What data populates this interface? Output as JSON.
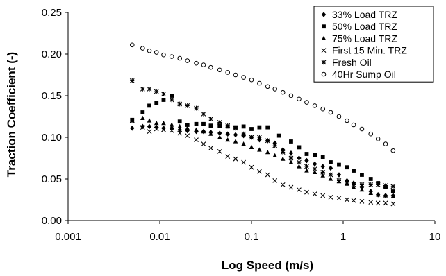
{
  "chart_data": {
    "type": "scatter",
    "title": "",
    "xlabel": "Log Speed (m/s)",
    "ylabel": "Traction Coefficient (-)",
    "x_scale": "log",
    "xlim": [
      0.001,
      10
    ],
    "ylim": [
      0,
      0.25
    ],
    "x_ticks": [
      "0.001",
      "0.01",
      "0.1",
      "1",
      "10"
    ],
    "y_ticks": [
      "0.00",
      "0.05",
      "0.10",
      "0.15",
      "0.20",
      "0.25"
    ],
    "grid": false,
    "legend_position": "top-right",
    "series": [
      {
        "name": "33% Load TRZ",
        "marker": "diamond",
        "x": [
          0.005,
          0.0065,
          0.0077,
          0.0092,
          0.011,
          0.0135,
          0.0165,
          0.02,
          0.025,
          0.03,
          0.036,
          0.045,
          0.055,
          0.067,
          0.082,
          0.1,
          0.122,
          0.15,
          0.18,
          0.22,
          0.27,
          0.33,
          0.4,
          0.49,
          0.6,
          0.73,
          0.9,
          1.1,
          1.3,
          1.6,
          2.0,
          2.4,
          2.9,
          3.5
        ],
        "y": [
          0.111,
          0.113,
          0.113,
          0.112,
          0.111,
          0.111,
          0.109,
          0.108,
          0.107,
          0.107,
          0.106,
          0.105,
          0.104,
          0.103,
          0.102,
          0.1,
          0.097,
          0.096,
          0.093,
          0.085,
          0.081,
          0.075,
          0.072,
          0.068,
          0.065,
          0.063,
          0.055,
          0.048,
          0.045,
          0.04,
          0.035,
          0.031,
          0.03,
          0.03
        ]
      },
      {
        "name": "50% Load TRZ",
        "marker": "square",
        "x": [
          0.005,
          0.0065,
          0.0077,
          0.0092,
          0.011,
          0.0135,
          0.0165,
          0.02,
          0.025,
          0.03,
          0.036,
          0.045,
          0.055,
          0.067,
          0.082,
          0.1,
          0.122,
          0.15,
          0.2,
          0.27,
          0.33,
          0.4,
          0.49,
          0.6,
          0.73,
          0.9,
          1.1,
          1.3,
          1.6,
          2.0,
          2.4,
          2.9,
          3.5
        ],
        "y": [
          0.121,
          0.13,
          0.138,
          0.141,
          0.145,
          0.15,
          0.119,
          0.115,
          0.116,
          0.116,
          0.114,
          0.114,
          0.113,
          0.112,
          0.113,
          0.11,
          0.112,
          0.112,
          0.102,
          0.095,
          0.088,
          0.08,
          0.079,
          0.076,
          0.07,
          0.067,
          0.064,
          0.06,
          0.055,
          0.05,
          0.045,
          0.04,
          0.035
        ]
      },
      {
        "name": "75% Load TRZ",
        "marker": "triangle",
        "x": [
          0.005,
          0.0065,
          0.0077,
          0.0092,
          0.011,
          0.0135,
          0.0165,
          0.02,
          0.025,
          0.03,
          0.036,
          0.045,
          0.055,
          0.067,
          0.082,
          0.1,
          0.122,
          0.15,
          0.18,
          0.22,
          0.27,
          0.33,
          0.4,
          0.49,
          0.6,
          0.73,
          0.9,
          1.1,
          1.3,
          1.6,
          2.0,
          2.4,
          2.9,
          3.5
        ],
        "y": [
          0.12,
          0.123,
          0.12,
          0.117,
          0.117,
          0.115,
          0.113,
          0.111,
          0.109,
          0.107,
          0.104,
          0.1,
          0.097,
          0.095,
          0.092,
          0.088,
          0.085,
          0.082,
          0.078,
          0.074,
          0.07,
          0.065,
          0.06,
          0.058,
          0.054,
          0.05,
          0.047,
          0.044,
          0.04,
          0.037,
          0.033,
          0.031,
          0.03,
          0.029
        ]
      },
      {
        "name": "First 15 Min. TRZ",
        "marker": "x",
        "x": [
          0.005,
          0.0065,
          0.0077,
          0.0092,
          0.011,
          0.0135,
          0.0165,
          0.02,
          0.025,
          0.03,
          0.036,
          0.045,
          0.055,
          0.067,
          0.082,
          0.1,
          0.122,
          0.15,
          0.18,
          0.22,
          0.27,
          0.33,
          0.4,
          0.49,
          0.6,
          0.73,
          0.9,
          1.1,
          1.3,
          1.6,
          2.0,
          2.4,
          2.9,
          3.5
        ],
        "y": [
          0.12,
          0.112,
          0.107,
          0.11,
          0.109,
          0.108,
          0.105,
          0.102,
          0.097,
          0.092,
          0.087,
          0.083,
          0.077,
          0.074,
          0.07,
          0.064,
          0.059,
          0.055,
          0.048,
          0.043,
          0.04,
          0.037,
          0.034,
          0.032,
          0.03,
          0.028,
          0.027,
          0.025,
          0.024,
          0.023,
          0.022,
          0.021,
          0.021,
          0.02
        ]
      },
      {
        "name": "Fresh Oil",
        "marker": "asterisk",
        "x": [
          0.005,
          0.0065,
          0.0077,
          0.0092,
          0.011,
          0.0135,
          0.0165,
          0.02,
          0.025,
          0.03,
          0.036,
          0.045,
          0.055,
          0.067,
          0.082,
          0.1,
          0.122,
          0.15,
          0.18,
          0.22,
          0.27,
          0.33,
          0.4,
          0.49,
          0.6,
          0.73,
          0.9,
          1.1,
          1.3,
          1.6,
          2.0,
          2.4,
          2.9,
          3.5
        ],
        "y": [
          0.168,
          0.158,
          0.158,
          0.155,
          0.152,
          0.145,
          0.14,
          0.138,
          0.135,
          0.128,
          0.122,
          0.118,
          0.114,
          0.111,
          0.104,
          0.1,
          0.1,
          0.096,
          0.09,
          0.082,
          0.075,
          0.07,
          0.065,
          0.062,
          0.058,
          0.055,
          0.048,
          0.045,
          0.043,
          0.043,
          0.043,
          0.043,
          0.042,
          0.041
        ]
      },
      {
        "name": "40Hr Sump Oil",
        "marker": "circle",
        "x": [
          0.005,
          0.0065,
          0.0077,
          0.0092,
          0.011,
          0.0135,
          0.0165,
          0.02,
          0.025,
          0.03,
          0.036,
          0.045,
          0.055,
          0.067,
          0.082,
          0.1,
          0.122,
          0.15,
          0.18,
          0.22,
          0.27,
          0.33,
          0.4,
          0.49,
          0.6,
          0.73,
          0.9,
          1.1,
          1.3,
          1.6,
          2.0,
          2.4,
          2.9,
          3.5
        ],
        "y": [
          0.211,
          0.207,
          0.204,
          0.202,
          0.199,
          0.197,
          0.195,
          0.192,
          0.189,
          0.187,
          0.184,
          0.181,
          0.178,
          0.175,
          0.172,
          0.169,
          0.165,
          0.161,
          0.158,
          0.154,
          0.15,
          0.146,
          0.142,
          0.138,
          0.134,
          0.13,
          0.125,
          0.12,
          0.115,
          0.11,
          0.104,
          0.098,
          0.092,
          0.084
        ]
      }
    ]
  }
}
